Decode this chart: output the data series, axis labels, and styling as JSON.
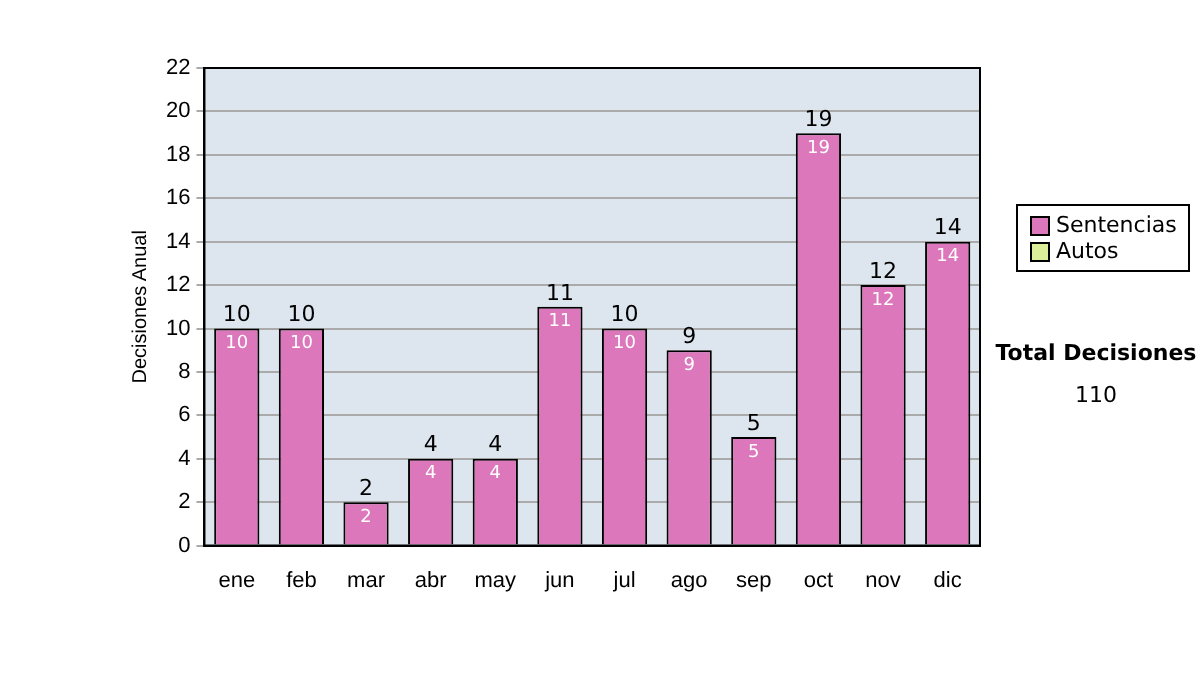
{
  "chart_data": {
    "type": "bar",
    "ylabel": "Decisiones Anual",
    "stacked": true,
    "categories": [
      "ene",
      "feb",
      "mar",
      "abr",
      "may",
      "jun",
      "jul",
      "ago",
      "sep",
      "oct",
      "nov",
      "dic"
    ],
    "series": [
      {
        "name": "Sentencias",
        "color": "#dd77bb",
        "values": [
          10,
          10,
          2,
          4,
          4,
          11,
          10,
          9,
          5,
          19,
          12,
          14
        ],
        "value_labels": [
          "10",
          "10",
          "2",
          "4",
          "4",
          "11",
          "10",
          "9",
          "5",
          "19",
          "12",
          "14"
        ]
      },
      {
        "name": "Autos",
        "color": "#ddee99",
        "values": [
          0,
          0,
          0,
          0,
          0,
          0,
          0,
          0,
          0,
          0,
          0,
          0
        ]
      }
    ],
    "totals": [
      "10",
      "10",
      "2",
      "4",
      "4",
      "11",
      "10",
      "9",
      "5",
      "19",
      "12",
      "14"
    ],
    "ylim": [
      0,
      22
    ],
    "yticks": [
      0,
      2,
      4,
      6,
      8,
      10,
      12,
      14,
      16,
      18,
      20,
      22
    ],
    "grid": "y",
    "legend": "right",
    "annotations": [
      "Total Decisiones",
      "110"
    ]
  }
}
